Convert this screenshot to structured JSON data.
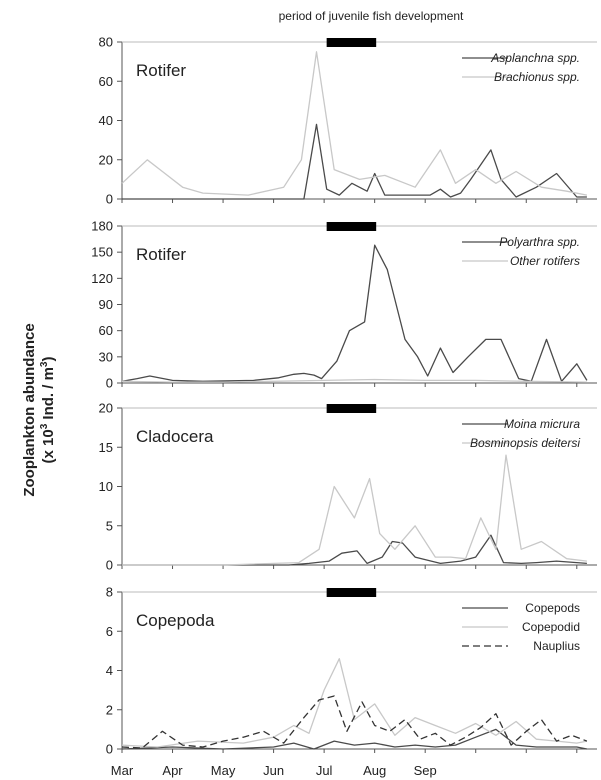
{
  "header": "period of juvenile fish development",
  "ylabel": {
    "line1": "Zooplankton abundance",
    "line2_prefix": "(x 10",
    "line2_sup3": "3",
    "line2_mid": " Ind. / m",
    "line2_sup2": "3",
    "line2_end": ")"
  },
  "months": [
    "Mar",
    "Apr",
    "May",
    "Jun",
    "Jul",
    "Aug",
    "Sep"
  ],
  "chart_data": [
    {
      "type": "line",
      "title": "Rotifer",
      "ylim": [
        0,
        80
      ],
      "yticks": [
        0,
        20,
        40,
        60,
        80
      ],
      "highlight_bar": [
        4.05,
        5.03
      ],
      "series": [
        {
          "name": "Asplanchna spp.",
          "style": "solid",
          "color": "#4a4a4a",
          "x": [
            0.0,
            1.4,
            1.7,
            3.2,
            3.6,
            3.85,
            4.05,
            4.3,
            4.55,
            4.85,
            5.0,
            5.2,
            6.1,
            6.3,
            6.5,
            6.7,
            6.9,
            7.3,
            7.5,
            7.8,
            8.2,
            8.6,
            9.0,
            9.2
          ],
          "y": [
            0,
            0,
            0,
            0,
            0,
            38,
            5,
            2,
            8,
            4,
            13,
            2,
            2,
            5,
            1,
            3,
            10,
            25,
            10,
            1,
            6,
            13,
            1,
            1
          ]
        },
        {
          "name": "Brachionus spp.",
          "style": "solid",
          "color": "#c8c8c8",
          "x": [
            0.0,
            0.5,
            0.8,
            1.2,
            1.6,
            2.5,
            3.2,
            3.55,
            3.85,
            4.2,
            4.7,
            5.2,
            5.8,
            6.3,
            6.6,
            7.0,
            7.4,
            7.8,
            8.3,
            8.8,
            9.2
          ],
          "y": [
            8,
            20,
            14,
            6,
            3,
            2,
            6,
            20,
            75,
            15,
            10,
            12,
            6,
            25,
            8,
            15,
            8,
            14,
            6,
            4,
            2
          ]
        }
      ]
    },
    {
      "type": "line",
      "title": "Rotifer",
      "ylim": [
        0,
        180
      ],
      "yticks": [
        0,
        30,
        60,
        90,
        120,
        150,
        180
      ],
      "highlight_bar": [
        4.05,
        5.03
      ],
      "series": [
        {
          "name": "Polyarthra spp.",
          "style": "solid",
          "color": "#4a4a4a",
          "x": [
            0.0,
            0.3,
            0.55,
            1.0,
            1.6,
            2.6,
            3.1,
            3.4,
            3.6,
            3.8,
            3.95,
            4.25,
            4.5,
            4.8,
            5.0,
            5.25,
            5.6,
            5.85,
            6.05,
            6.3,
            6.55,
            6.85,
            7.2,
            7.5,
            7.85,
            8.1,
            8.4,
            8.7,
            9.0,
            9.2
          ],
          "y": [
            2,
            5,
            8,
            3,
            2,
            3,
            6,
            10,
            11,
            9,
            5,
            25,
            60,
            70,
            158,
            130,
            50,
            30,
            8,
            40,
            12,
            30,
            50,
            50,
            5,
            2,
            50,
            2,
            22,
            3
          ]
        },
        {
          "name": "Other rotifers",
          "style": "solid",
          "color": "#c8c8c8",
          "x": [
            0.0,
            1.0,
            2.0,
            3.0,
            4.0,
            5.0,
            6.0,
            7.0,
            8.0,
            9.2
          ],
          "y": [
            2,
            1,
            1,
            2,
            3,
            4,
            3,
            3,
            2,
            1
          ]
        }
      ]
    },
    {
      "type": "line",
      "title": "Cladocera",
      "ylim": [
        0,
        20
      ],
      "yticks": [
        0,
        5,
        10,
        15,
        20
      ],
      "highlight_bar": [
        4.05,
        5.03
      ],
      "series": [
        {
          "name": "Moina micrura",
          "style": "solid",
          "color": "#4a4a4a",
          "x": [
            0.0,
            1.5,
            2.5,
            3.3,
            3.7,
            4.1,
            4.35,
            4.65,
            4.85,
            5.15,
            5.35,
            5.55,
            5.8,
            6.05,
            6.3,
            6.7,
            7.0,
            7.3,
            7.55,
            7.9,
            8.2,
            8.6,
            9.2
          ],
          "y": [
            0,
            0,
            0,
            0,
            0.2,
            0.5,
            1.5,
            1.8,
            0.2,
            1.0,
            3.0,
            2.8,
            1.0,
            0.6,
            0.2,
            0.5,
            1.0,
            3.8,
            0.3,
            0.2,
            0.3,
            0.5,
            0.2
          ]
        },
        {
          "name": "Bosminopsis deitersi",
          "style": "solid",
          "color": "#c8c8c8",
          "x": [
            0.0,
            2.0,
            3.5,
            3.9,
            4.2,
            4.6,
            4.9,
            5.1,
            5.4,
            5.8,
            6.2,
            6.5,
            6.8,
            7.1,
            7.4,
            7.6,
            7.9,
            8.3,
            8.8,
            9.2
          ],
          "y": [
            0,
            0,
            0.3,
            2,
            10,
            6,
            11,
            4,
            2,
            5,
            1,
            1,
            0.8,
            6,
            2,
            14,
            2,
            3,
            0.8,
            0.5
          ]
        }
      ]
    },
    {
      "type": "line",
      "title": "Copepoda",
      "ylim": [
        0,
        8
      ],
      "yticks": [
        0,
        2,
        4,
        6,
        8
      ],
      "xlim": [
        0,
        9.4
      ],
      "highlight_bar": [
        4.05,
        5.03
      ],
      "series": [
        {
          "name": "Copepods",
          "style": "solid",
          "color": "#4a4a4a",
          "x": [
            0.0,
            1.0,
            2.0,
            3.0,
            3.4,
            3.8,
            4.2,
            4.6,
            5.0,
            5.4,
            5.8,
            6.2,
            6.6,
            7.0,
            7.4,
            7.8,
            8.2,
            8.6,
            9.0,
            9.2
          ],
          "y": [
            0,
            0.1,
            0,
            0.1,
            0.3,
            0,
            0.4,
            0.2,
            0.3,
            0.1,
            0.2,
            0.1,
            0.2,
            0.6,
            1.0,
            0.2,
            0.1,
            0.1,
            0.1,
            0
          ]
        },
        {
          "name": "Copepodid",
          "style": "solid",
          "color": "#c8c8c8",
          "x": [
            0.0,
            0.7,
            1.5,
            2.4,
            3.0,
            3.4,
            3.7,
            4.0,
            4.3,
            4.6,
            5.0,
            5.4,
            5.8,
            6.2,
            6.6,
            7.0,
            7.4,
            7.8,
            8.2,
            8.6,
            9.0,
            9.2
          ],
          "y": [
            0.2,
            0.1,
            0.4,
            0.3,
            0.6,
            1.2,
            0.8,
            3.0,
            4.6,
            1.5,
            2.3,
            0.7,
            1.6,
            1.2,
            0.8,
            1.3,
            0.7,
            1.4,
            0.5,
            0.4,
            0.3,
            0.4
          ]
        },
        {
          "name": "Nauplius",
          "style": "dashed",
          "color": "#333333",
          "x": [
            0.0,
            0.4,
            0.8,
            1.2,
            1.6,
            2.0,
            2.4,
            2.8,
            3.2,
            3.6,
            3.9,
            4.2,
            4.45,
            4.75,
            5.0,
            5.3,
            5.6,
            5.9,
            6.2,
            6.5,
            6.8,
            7.1,
            7.4,
            7.7,
            8.0,
            8.3,
            8.6,
            8.9,
            9.2
          ],
          "y": [
            0.1,
            0.05,
            0.9,
            0.2,
            0.1,
            0.4,
            0.6,
            0.9,
            0.3,
            1.6,
            2.5,
            2.7,
            0.9,
            2.4,
            1.2,
            0.9,
            1.5,
            0.5,
            0.8,
            0.2,
            0.6,
            1.1,
            1.8,
            0.2,
            0.9,
            1.5,
            0.4,
            0.7,
            0.4
          ]
        }
      ]
    }
  ]
}
